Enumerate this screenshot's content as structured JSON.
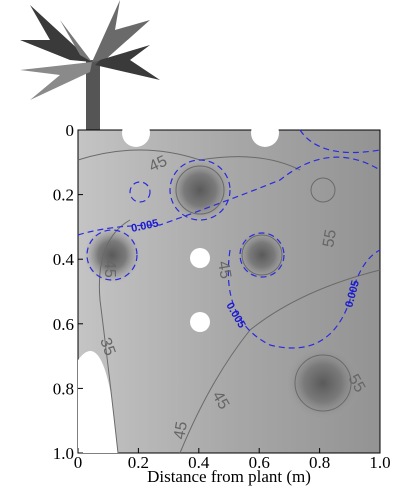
{
  "chart_data": {
    "type": "contour",
    "xlabel": "Distance from plant (m)",
    "xlim": [
      0,
      1
    ],
    "xticks": [
      0,
      0.2,
      0.4,
      0.6,
      0.8,
      {
        "value": 1,
        "label": "1.0"
      }
    ],
    "ylim": [
      0,
      1
    ],
    "yticks": [
      0,
      0.2,
      0.4,
      0.6,
      0.8,
      {
        "value": 1,
        "label": "1.0"
      }
    ],
    "contour_labels": [
      45,
      0.005,
      45,
      45,
      0.005,
      55,
      0.005,
      35,
      45,
      55,
      45
    ]
  }
}
